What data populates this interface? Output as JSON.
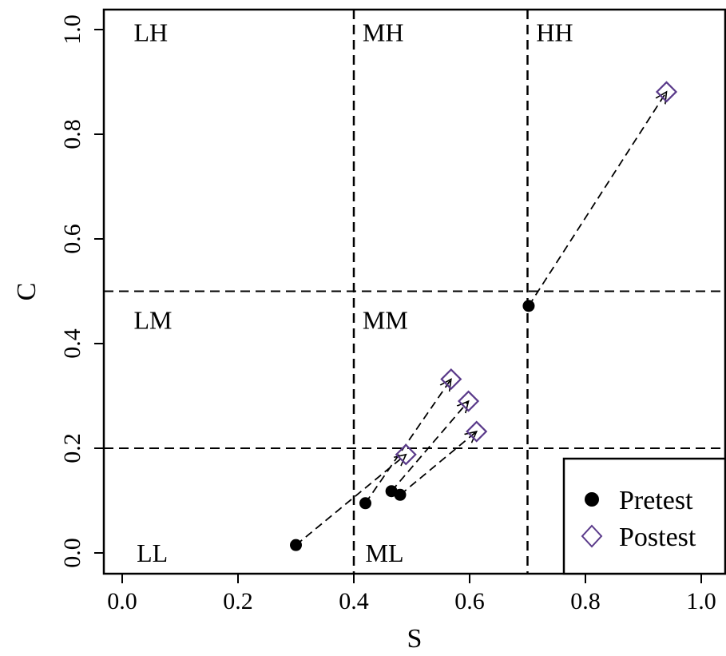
{
  "chart_data": {
    "type": "scatter",
    "title": "",
    "xlabel": "S",
    "ylabel": "C",
    "xlim": [
      -0.04,
      1.04
    ],
    "ylim": [
      -0.04,
      1.04
    ],
    "x_ticks": [
      "0.0",
      "0.2",
      "0.4",
      "0.6",
      "0.8",
      "1.0"
    ],
    "y_ticks": [
      "0.0",
      "0.2",
      "0.4",
      "0.6",
      "0.8",
      "1.0"
    ],
    "x_tick_values": [
      0.0,
      0.2,
      0.4,
      0.6,
      0.8,
      1.0
    ],
    "y_tick_values": [
      0.0,
      0.2,
      0.4,
      0.6,
      0.8,
      1.0
    ],
    "grid": false,
    "thresholds": {
      "x": [
        0.4,
        0.7
      ],
      "y": [
        0.2,
        0.5
      ]
    },
    "regions": [
      {
        "label": "LH",
        "x": 0.02,
        "y": 0.995
      },
      {
        "label": "MH",
        "x": 0.415,
        "y": 0.995
      },
      {
        "label": "HH",
        "x": 0.715,
        "y": 0.995
      },
      {
        "label": "LM",
        "x": 0.02,
        "y": 0.445
      },
      {
        "label": "MM",
        "x": 0.415,
        "y": 0.445
      },
      {
        "label": "LL",
        "x": 0.025,
        "y": 0.0
      },
      {
        "label": "ML",
        "x": 0.42,
        "y": 0.0
      }
    ],
    "series": [
      {
        "name": "Pretest",
        "marker": "filled-circle",
        "color": "#000000",
        "points": [
          {
            "x": 0.3,
            "y": 0.015
          },
          {
            "x": 0.42,
            "y": 0.095
          },
          {
            "x": 0.465,
            "y": 0.118
          },
          {
            "x": 0.48,
            "y": 0.111
          },
          {
            "x": 0.702,
            "y": 0.472
          }
        ]
      },
      {
        "name": "Postest",
        "marker": "open-diamond",
        "color": "#5a3a8a",
        "points": [
          {
            "x": 0.49,
            "y": 0.188
          },
          {
            "x": 0.568,
            "y": 0.332
          },
          {
            "x": 0.598,
            "y": 0.29
          },
          {
            "x": 0.612,
            "y": 0.232
          },
          {
            "x": 0.94,
            "y": 0.881
          }
        ]
      }
    ],
    "arrows": [
      {
        "from": [
          0.3,
          0.015
        ],
        "to": [
          0.49,
          0.188
        ]
      },
      {
        "from": [
          0.42,
          0.095
        ],
        "to": [
          0.568,
          0.332
        ]
      },
      {
        "from": [
          0.465,
          0.118
        ],
        "to": [
          0.598,
          0.29
        ]
      },
      {
        "from": [
          0.48,
          0.111
        ],
        "to": [
          0.612,
          0.232
        ]
      },
      {
        "from": [
          0.702,
          0.472
        ],
        "to": [
          0.94,
          0.881
        ]
      }
    ],
    "legend": {
      "placement": "bottom-right",
      "items": [
        "Pretest",
        "Postest"
      ]
    }
  }
}
